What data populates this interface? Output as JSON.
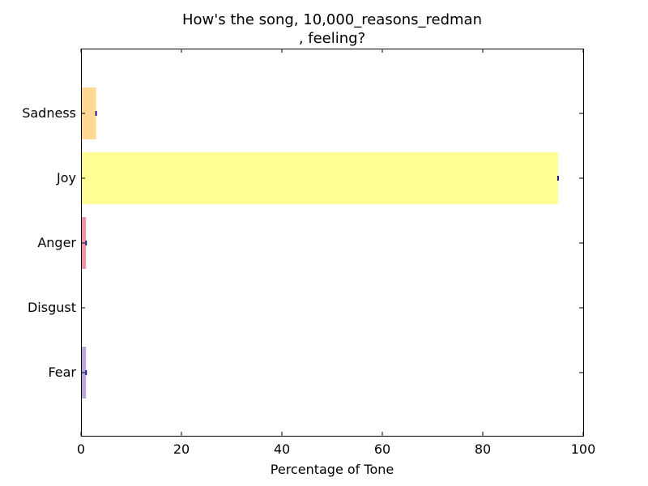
{
  "chart_data": {
    "type": "bar",
    "orientation": "horizontal",
    "title_lines": [
      "How's the song, 10,000_reasons_redman",
      ", feeling?"
    ],
    "xlabel": "Percentage of Tone",
    "ylabel": "",
    "xlim": [
      0,
      100
    ],
    "xticks": [
      "0",
      "20",
      "40",
      "60",
      "80",
      "100"
    ],
    "categories": [
      "Fear",
      "Disgust",
      "Anger",
      "Joy",
      "Sadness"
    ],
    "values": [
      1,
      0,
      1,
      95,
      3
    ],
    "colors": [
      "#9f7fc6",
      "#7fbf7f",
      "#e8677f",
      "#ffff66",
      "#ffc966"
    ],
    "grid": false
  }
}
